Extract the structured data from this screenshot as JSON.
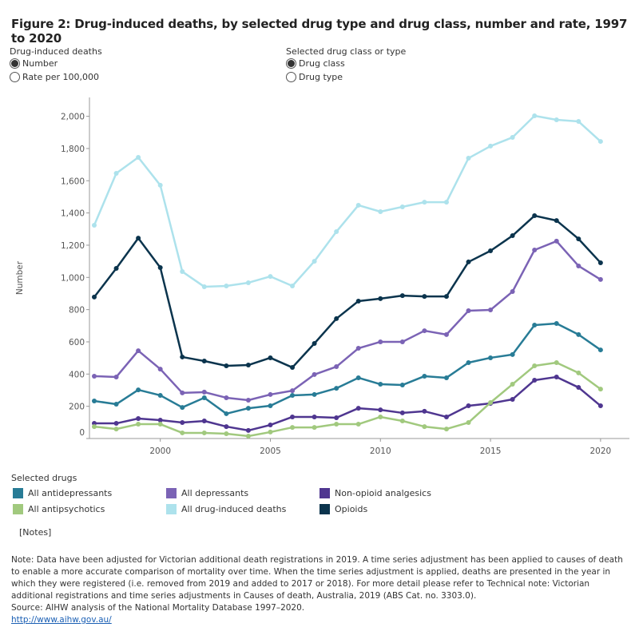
{
  "title": "Figure 2: Drug-induced deaths, by selected drug type and drug class, number and rate, 1997 to 2020",
  "controls": {
    "measure": {
      "label": "Drug-induced deaths",
      "options": [
        {
          "label": "Number",
          "selected": true
        },
        {
          "label": "Rate per 100,000",
          "selected": false
        }
      ]
    },
    "grouping": {
      "label": "Selected drug class or type",
      "options": [
        {
          "label": "Drug class",
          "selected": true
        },
        {
          "label": "Drug type",
          "selected": false
        }
      ]
    }
  },
  "legend": {
    "title": "Selected drugs"
  },
  "notes_link": "[Notes]",
  "footnote": {
    "note": "Note: Data have been adjusted for Victorian additional death registrations in 2019. A time series adjustment has been applied to causes of death to enable a more accurate comparison of mortality over time. When the time series adjustment is applied, deaths are presented in the year in which they were registered (i.e. removed from 2019 and added to 2017 or 2018). For more detail please refer to Technical note: Victorian additional registrations and time series adjustments in Causes of death, Australia, 2019 (ABS Cat. no. 3303.0).",
    "source": "Source: AIHW analysis of the National Mortality Database 1997–2020.",
    "url": "http://www.aihw.gov.au/"
  },
  "chart_data": {
    "type": "line",
    "ylabel": "Number",
    "xlabel": "",
    "ylim": [
      0,
      2100
    ],
    "xlim": [
      1997,
      2020
    ],
    "yticks": [
      "0",
      "200",
      "400",
      "600",
      "800",
      "1,000",
      "1,200",
      "1,400",
      "1,600",
      "1,800",
      "2,000"
    ],
    "xticks": [
      "2000",
      "2005",
      "2010",
      "2015",
      "2020"
    ],
    "grid": false,
    "legend_position": "bottom",
    "x": [
      1997,
      1998,
      1999,
      2000,
      2001,
      2002,
      2003,
      2004,
      2005,
      2006,
      2007,
      2008,
      2009,
      2010,
      2011,
      2012,
      2013,
      2014,
      2015,
      2016,
      2017,
      2018,
      2019,
      2020
    ],
    "series": [
      {
        "name": "All antidepressants",
        "color": "#287c96",
        "values": [
          233,
          213,
          302,
          268,
          193,
          253,
          154,
          188,
          203,
          268,
          273,
          312,
          377,
          337,
          332,
          387,
          377,
          471,
          501,
          521,
          704,
          714,
          645,
          550
        ]
      },
      {
        "name": "All antipsychotics",
        "color": "#a1c97e",
        "values": [
          74,
          59,
          89,
          89,
          35,
          35,
          30,
          15,
          40,
          69,
          69,
          89,
          89,
          134,
          109,
          74,
          59,
          99,
          223,
          337,
          451,
          471,
          407,
          307
        ]
      },
      {
        "name": "All depressants",
        "color": "#7b63b5",
        "values": [
          387,
          382,
          545,
          431,
          283,
          288,
          253,
          238,
          273,
          297,
          397,
          446,
          560,
          600,
          600,
          669,
          645,
          793,
          798,
          912,
          1170,
          1225,
          1071,
          987
        ]
      },
      {
        "name": "All drug-induced deaths",
        "color": "#ade2ec",
        "values": [
          1324,
          1646,
          1745,
          1572,
          1036,
          942,
          947,
          967,
          1006,
          947,
          1100,
          1284,
          1448,
          1408,
          1438,
          1467,
          1467,
          1740,
          1815,
          1869,
          2003,
          1978,
          1968,
          1844
        ]
      },
      {
        "name": "Non-opioid analgesics",
        "color": "#4f3690",
        "values": [
          94,
          94,
          124,
          114,
          99,
          109,
          74,
          50,
          84,
          134,
          134,
          129,
          188,
          178,
          159,
          169,
          134,
          203,
          218,
          243,
          362,
          382,
          317,
          203
        ]
      },
      {
        "name": "Opioids",
        "color": "#0b344d",
        "values": [
          878,
          1056,
          1244,
          1061,
          506,
          481,
          451,
          456,
          501,
          441,
          590,
          744,
          853,
          868,
          887,
          882,
          882,
          1096,
          1165,
          1259,
          1383,
          1353,
          1239,
          1091
        ]
      }
    ]
  }
}
